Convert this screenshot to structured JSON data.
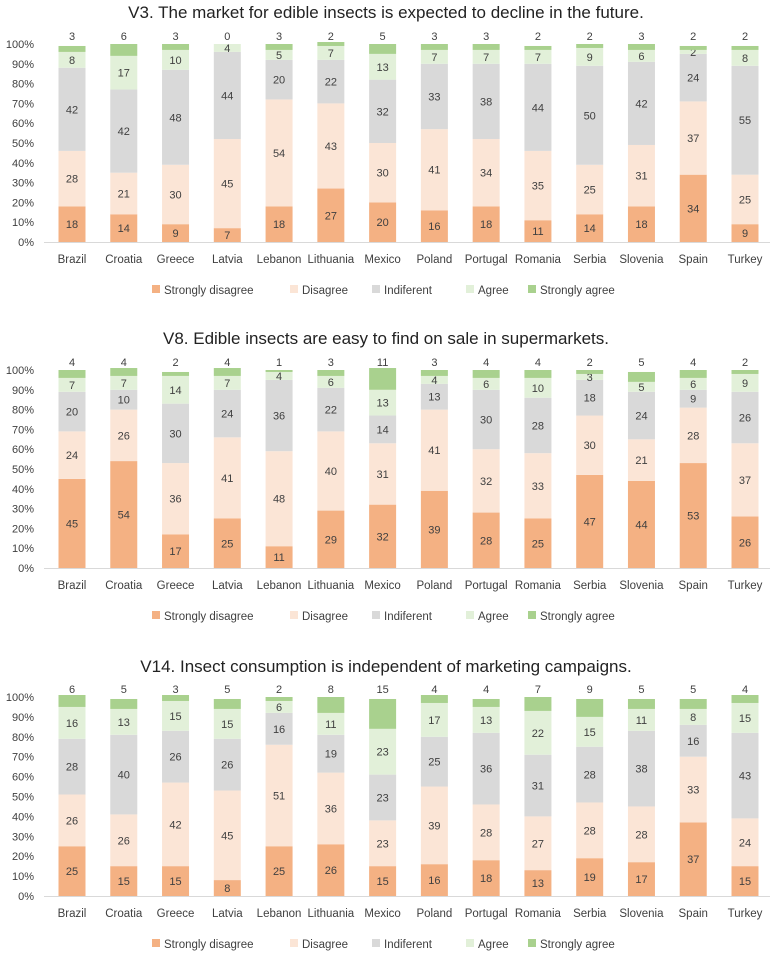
{
  "chart_data": [
    {
      "type": "bar",
      "stacked": true,
      "title": "V3. The market for edible insects is expected to decline in the future.",
      "categories": [
        "Brazil",
        "Croatia",
        "Greece",
        "Latvia",
        "Lebanon",
        "Lithuania",
        "Mexico",
        "Poland",
        "Portugal",
        "Romania",
        "Serbia",
        "Slovenia",
        "Spain",
        "Turkey"
      ],
      "yticks": [
        "0%",
        "10%",
        "20%",
        "30%",
        "40%",
        "50%",
        "60%",
        "70%",
        "80%",
        "90%",
        "100%"
      ],
      "ylim": [
        0,
        100
      ],
      "legend_position": "bottom",
      "series": [
        {
          "name": "Strongly disagree",
          "color": "#F4B183",
          "values": [
            18,
            14,
            9,
            7,
            18,
            27,
            20,
            16,
            18,
            11,
            14,
            18,
            34,
            9
          ]
        },
        {
          "name": "Disagree",
          "color": "#FBE5D6",
          "values": [
            28,
            21,
            30,
            45,
            54,
            43,
            30,
            41,
            34,
            35,
            25,
            31,
            37,
            25
          ]
        },
        {
          "name": "Indiferent",
          "color": "#D9D9D9",
          "values": [
            42,
            42,
            48,
            44,
            20,
            22,
            32,
            33,
            38,
            44,
            50,
            42,
            24,
            55
          ]
        },
        {
          "name": "Agree",
          "color": "#E2F0D9",
          "values": [
            8,
            17,
            10,
            4,
            5,
            7,
            13,
            7,
            7,
            7,
            9,
            6,
            2,
            8
          ]
        },
        {
          "name": "Strongly agree",
          "color": "#A9D18E",
          "values": [
            3,
            6,
            3,
            0,
            3,
            2,
            5,
            3,
            3,
            2,
            2,
            3,
            2,
            2
          ]
        }
      ]
    },
    {
      "type": "bar",
      "stacked": true,
      "title": "V8. Edible insects are easy to find on sale in supermarkets.",
      "categories": [
        "Brazil",
        "Croatia",
        "Greece",
        "Latvia",
        "Lebanon",
        "Lithuania",
        "Mexico",
        "Poland",
        "Portugal",
        "Romania",
        "Serbia",
        "Slovenia",
        "Spain",
        "Turkey"
      ],
      "yticks": [
        "0%",
        "10%",
        "20%",
        "30%",
        "40%",
        "50%",
        "60%",
        "70%",
        "80%",
        "90%",
        "100%"
      ],
      "ylim": [
        0,
        100
      ],
      "legend_position": "bottom",
      "series": [
        {
          "name": "Strongly disagree",
          "color": "#F4B183",
          "values": [
            45,
            54,
            17,
            25,
            11,
            29,
            32,
            39,
            28,
            25,
            47,
            44,
            53,
            26
          ]
        },
        {
          "name": "Disagree",
          "color": "#FBE5D6",
          "values": [
            24,
            26,
            36,
            41,
            48,
            40,
            31,
            41,
            32,
            33,
            30,
            21,
            28,
            37
          ]
        },
        {
          "name": "Indiferent",
          "color": "#D9D9D9",
          "values": [
            20,
            10,
            30,
            24,
            36,
            22,
            14,
            13,
            30,
            28,
            18,
            24,
            9,
            26
          ]
        },
        {
          "name": "Agree",
          "color": "#E2F0D9",
          "values": [
            7,
            7,
            14,
            7,
            4,
            6,
            13,
            4,
            6,
            10,
            3,
            5,
            6,
            9
          ]
        },
        {
          "name": "Strongly agree",
          "color": "#A9D18E",
          "values": [
            4,
            4,
            2,
            4,
            1,
            3,
            11,
            3,
            4,
            4,
            2,
            5,
            4,
            2
          ]
        }
      ]
    },
    {
      "type": "bar",
      "stacked": true,
      "title": "V14. Insect consumption is independent of marketing campaigns.",
      "categories": [
        "Brazil",
        "Croatia",
        "Greece",
        "Latvia",
        "Lebanon",
        "Lithuania",
        "Mexico",
        "Poland",
        "Portugal",
        "Romania",
        "Serbia",
        "Slovenia",
        "Spain",
        "Turkey"
      ],
      "yticks": [
        "0%",
        "10%",
        "20%",
        "30%",
        "40%",
        "50%",
        "60%",
        "70%",
        "80%",
        "90%",
        "100%"
      ],
      "ylim": [
        0,
        100
      ],
      "legend_position": "bottom",
      "series": [
        {
          "name": "Strongly disagree",
          "color": "#F4B183",
          "values": [
            25,
            15,
            15,
            8,
            25,
            26,
            15,
            16,
            18,
            13,
            19,
            17,
            37,
            15
          ]
        },
        {
          "name": "Disagree",
          "color": "#FBE5D6",
          "values": [
            26,
            26,
            42,
            45,
            51,
            36,
            23,
            39,
            28,
            27,
            28,
            28,
            33,
            24
          ]
        },
        {
          "name": "Indiferent",
          "color": "#D9D9D9",
          "values": [
            28,
            40,
            26,
            26,
            16,
            19,
            23,
            25,
            36,
            31,
            28,
            38,
            16,
            43
          ]
        },
        {
          "name": "Agree",
          "color": "#E2F0D9",
          "values": [
            16,
            13,
            15,
            15,
            6,
            11,
            23,
            17,
            13,
            22,
            15,
            11,
            8,
            15
          ]
        },
        {
          "name": "Strongly agree",
          "color": "#A9D18E",
          "values": [
            6,
            5,
            3,
            5,
            2,
            8,
            15,
            4,
            4,
            7,
            9,
            5,
            5,
            4
          ]
        }
      ]
    }
  ]
}
